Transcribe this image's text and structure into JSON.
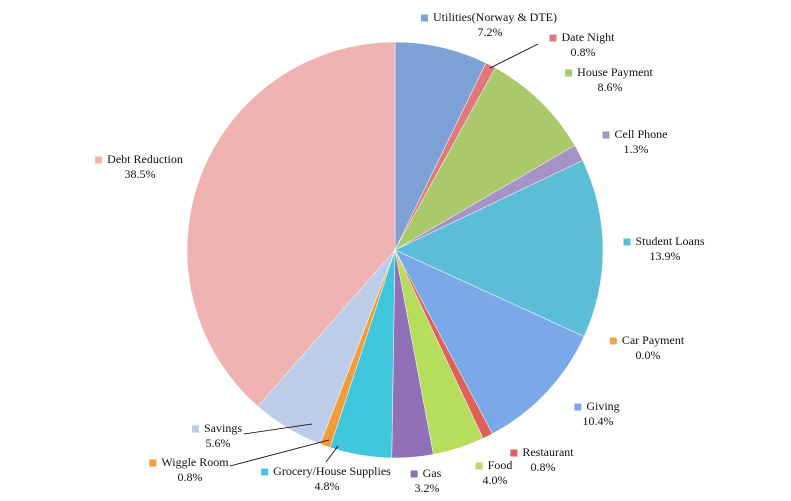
{
  "chart_data": {
    "type": "pie",
    "categories": [
      "Utilities(Norway & DTE)",
      "Date Night",
      "House Payment",
      "Cell Phone",
      "Student Loans",
      "Car Payment",
      "Giving",
      "Restaurant",
      "Food",
      "Gas",
      "Grocery/House Supplies",
      "Wiggle Room",
      "Savings",
      "Debt Reduction"
    ],
    "values": [
      7.2,
      0.8,
      8.6,
      1.3,
      13.9,
      0.0,
      10.4,
      0.8,
      4.0,
      3.2,
      4.8,
      0.8,
      5.6,
      38.5
    ],
    "value_labels": [
      "7.2%",
      "0.8%",
      "8.6%",
      "1.3%",
      "13.9%",
      "0.0%",
      "10.4%",
      "0.8%",
      "4.0%",
      "3.2%",
      "4.8%",
      "0.8%",
      "5.6%",
      "38.5%"
    ],
    "colors": [
      "#7fa2d6",
      "#e07a7a",
      "#a9c96b",
      "#a792c6",
      "#5cbdd7",
      "#f6a04a",
      "#7ba8e8",
      "#e0605a",
      "#b6dd5b",
      "#9070b6",
      "#40c6dd",
      "#f39c3a",
      "#bdcce9",
      "#f0b1b1"
    ]
  }
}
